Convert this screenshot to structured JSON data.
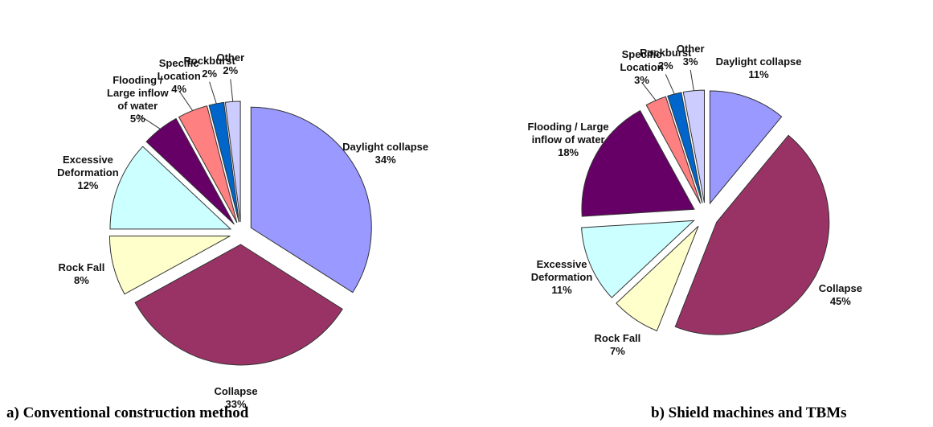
{
  "chart_data": [
    {
      "type": "pie",
      "title": "a) Conventional construction method",
      "categories": [
        "Daylight collapse",
        "Collapse",
        "Rock Fall",
        "Excessive Deformation",
        "Flooding / Large inflow of water",
        "Specific Location",
        "Rockburst",
        "Other"
      ],
      "values": [
        34,
        33,
        8,
        12,
        5,
        4,
        2,
        2
      ],
      "value_labels": [
        "34%",
        "33%",
        "8%",
        "12%",
        "5%",
        "4%",
        "2%",
        "2%"
      ],
      "colors": [
        "#9999ff",
        "#993366",
        "#ffffcc",
        "#ccffff",
        "#660066",
        "#ff8080",
        "#0066cc",
        "#ccccff"
      ]
    },
    {
      "type": "pie",
      "title": "b) Shield machines and TBMs",
      "categories": [
        "Daylight collapse",
        "Collapse",
        "Rock Fall",
        "Excessive Deformation",
        "Flooding / Large inflow of water",
        "Specific Location",
        "Rockburst",
        "Other"
      ],
      "values": [
        11,
        45,
        7,
        11,
        18,
        3,
        2,
        3
      ],
      "value_labels": [
        "11%",
        "45%",
        "7%",
        "11%",
        "18%",
        "3%",
        "2%",
        "3%"
      ],
      "colors": [
        "#9999ff",
        "#993366",
        "#ffffcc",
        "#ccffff",
        "#660066",
        "#ff8080",
        "#0066cc",
        "#ccccff"
      ]
    }
  ]
}
